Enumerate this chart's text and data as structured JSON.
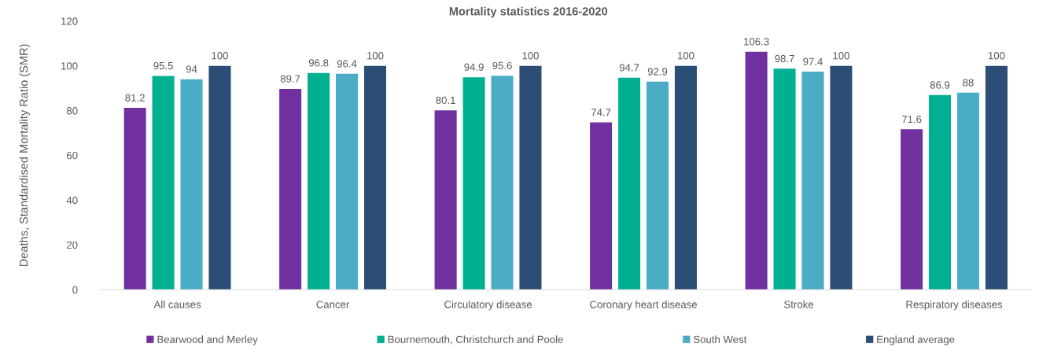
{
  "chart_data": {
    "type": "bar",
    "title": "Mortality statistics 2016-2020",
    "ylabel": "Deaths, Standardised Mortality Ratio (SMR)",
    "categories": [
      "All causes",
      "Cancer",
      "Circulatory disease",
      "Coronary heart disease",
      "Stroke",
      "Respiratory diseases"
    ],
    "series": [
      {
        "name": "Bearwood and Merley",
        "color": "#7030a0",
        "values": [
          81.2,
          89.7,
          80.1,
          74.7,
          106.3,
          71.6
        ]
      },
      {
        "name": "Bournemouth, Christchurch and Poole",
        "color": "#00b090",
        "values": [
          95.5,
          96.8,
          94.9,
          94.7,
          98.7,
          86.9
        ]
      },
      {
        "name": "South West",
        "color": "#4bacc6",
        "values": [
          94,
          96.4,
          95.6,
          92.9,
          97.4,
          88
        ]
      },
      {
        "name": "England average",
        "color": "#2c4d75",
        "values": [
          100,
          100,
          100,
          100,
          100,
          100
        ]
      }
    ],
    "ylim": [
      0,
      120
    ],
    "yticks": [
      0,
      20,
      40,
      60,
      80,
      100,
      120
    ],
    "data_labels": true,
    "grid": false,
    "legend": "bottom"
  }
}
